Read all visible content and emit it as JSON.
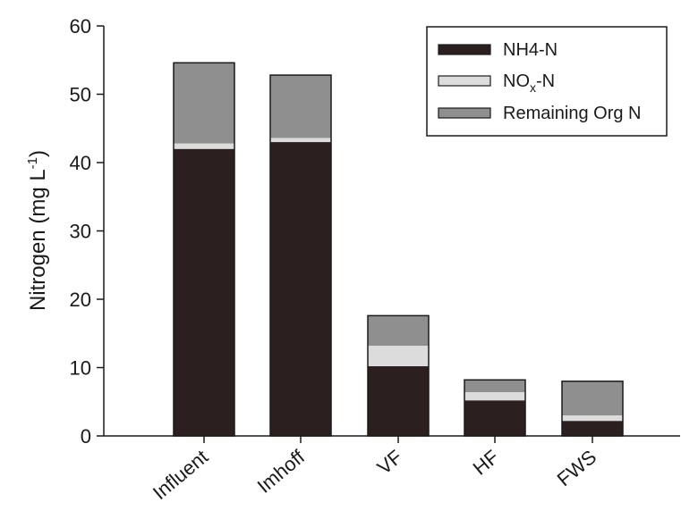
{
  "chart_data": {
    "type": "bar",
    "stacked": true,
    "categories": [
      "Influent",
      "Imhoff",
      "VF",
      "HF",
      "FWS"
    ],
    "series": [
      {
        "name": "NH4-N",
        "color": "#2b1f1f",
        "values": [
          42.0,
          43.0,
          10.2,
          5.2,
          2.2
        ]
      },
      {
        "name": "NOx-N",
        "color": "#dcdcdc",
        "values": [
          0.8,
          0.6,
          3.0,
          1.2,
          0.8
        ]
      },
      {
        "name": "Remaining Org N",
        "color": "#8f8f8f",
        "values": [
          11.8,
          9.2,
          4.4,
          1.8,
          5.0
        ]
      }
    ],
    "legend": {
      "entries": [
        {
          "prefix": "NH4-N",
          "sub": "",
          "suffix": ""
        },
        {
          "prefix": "NO",
          "sub": "x",
          "suffix": "-N"
        },
        {
          "prefix": "Remaining Org N",
          "sub": "",
          "suffix": ""
        }
      ],
      "placement": "top-right"
    },
    "ylabel": {
      "main": "Nitrogen (mg L",
      "sup": "-1",
      "close": ")"
    },
    "xlabel": "",
    "ylim": [
      0,
      60
    ],
    "yticks": [
      0,
      10,
      20,
      30,
      40,
      50,
      60
    ],
    "grid": false
  }
}
